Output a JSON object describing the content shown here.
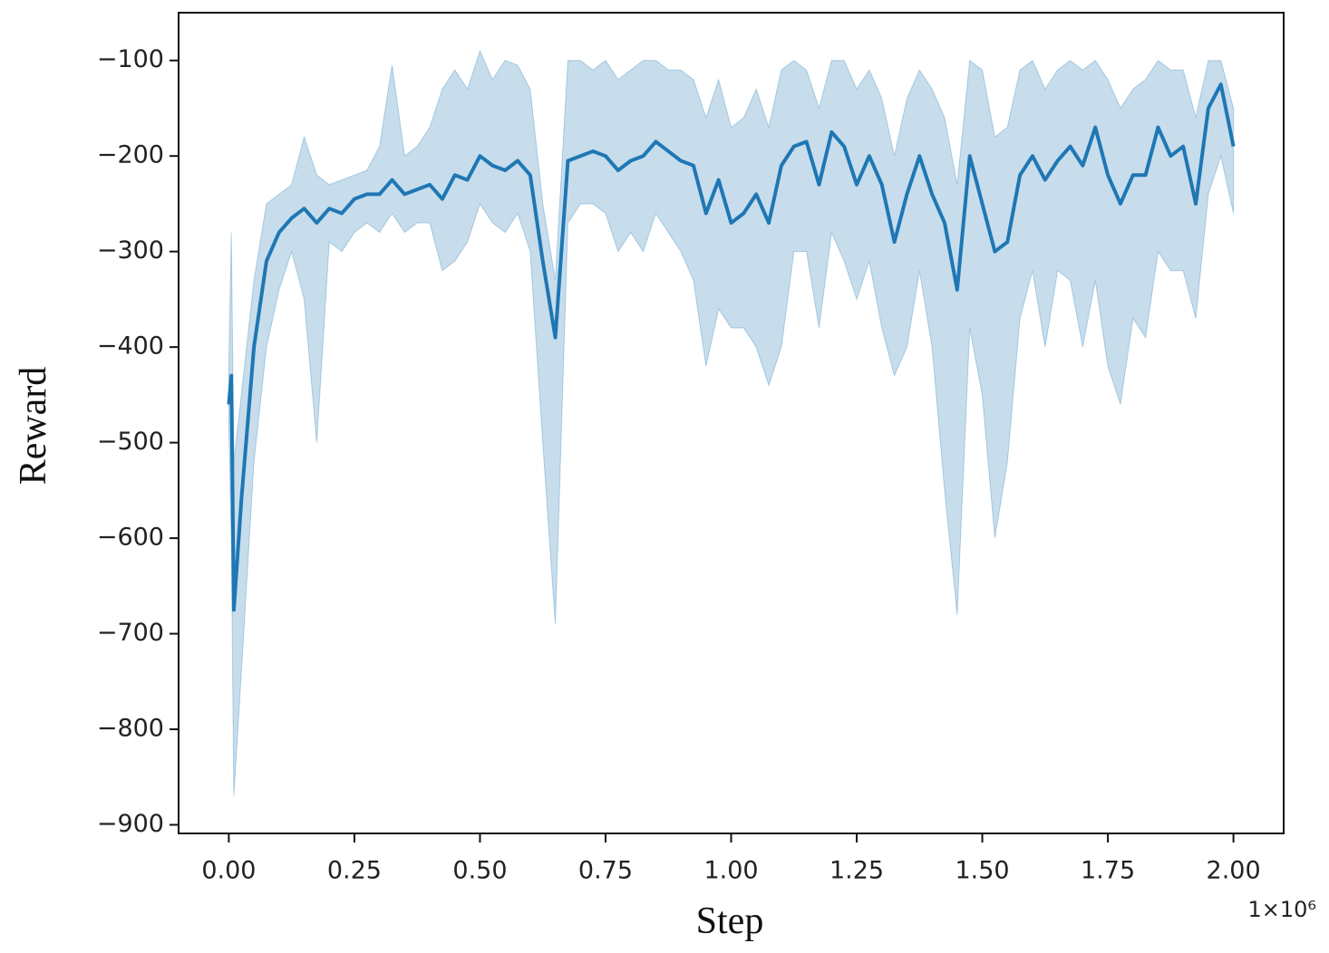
{
  "chart_data": {
    "type": "line",
    "xlabel": "Step",
    "ylabel": "Reward",
    "x_offset_label": "1×10⁶",
    "xlim": [
      -0.1,
      2.1
    ],
    "ylim": [
      -909,
      -50
    ],
    "xticks": [
      {
        "value": 0,
        "label": "0.00"
      },
      {
        "value": 0.25,
        "label": "0.25"
      },
      {
        "value": 0.5,
        "label": "0.50"
      },
      {
        "value": 0.75,
        "label": "0.75"
      },
      {
        "value": 1,
        "label": "1.00"
      },
      {
        "value": 1.25,
        "label": "1.25"
      },
      {
        "value": 1.5,
        "label": "1.50"
      },
      {
        "value": 1.75,
        "label": "1.75"
      },
      {
        "value": 2,
        "label": "2.00"
      }
    ],
    "yticks": [
      {
        "value": -900,
        "label": "−900"
      },
      {
        "value": -800,
        "label": "−800"
      },
      {
        "value": -700,
        "label": "−700"
      },
      {
        "value": -600,
        "label": "−600"
      },
      {
        "value": -500,
        "label": "−500"
      },
      {
        "value": -400,
        "label": "−400"
      },
      {
        "value": -300,
        "label": "−300"
      },
      {
        "value": -200,
        "label": "−200"
      },
      {
        "value": -100,
        "label": "−100"
      }
    ],
    "x": [
      0,
      0.005,
      0.01,
      0.025,
      0.05,
      0.075,
      0.1,
      0.125,
      0.15,
      0.175,
      0.2,
      0.225,
      0.25,
      0.275,
      0.3,
      0.325,
      0.35,
      0.375,
      0.4,
      0.425,
      0.45,
      0.475,
      0.5,
      0.525,
      0.55,
      0.575,
      0.6,
      0.625,
      0.65,
      0.675,
      0.7,
      0.725,
      0.75,
      0.775,
      0.8,
      0.825,
      0.85,
      0.875,
      0.9,
      0.925,
      0.95,
      0.975,
      1.0,
      1.025,
      1.05,
      1.075,
      1.1,
      1.125,
      1.15,
      1.175,
      1.2,
      1.225,
      1.25,
      1.275,
      1.3,
      1.325,
      1.35,
      1.375,
      1.4,
      1.425,
      1.45,
      1.475,
      1.5,
      1.525,
      1.55,
      1.575,
      1.6,
      1.625,
      1.65,
      1.675,
      1.7,
      1.725,
      1.75,
      1.775,
      1.8,
      1.825,
      1.85,
      1.875,
      1.9,
      1.925,
      1.95,
      1.975,
      2.0
    ],
    "series": [
      {
        "color": "#1f77b4",
        "values": [
          -460,
          -430,
          -675,
          -560,
          -400,
          -310,
          -280,
          -265,
          -255,
          -270,
          -255,
          -260,
          -245,
          -240,
          -240,
          -225,
          -240,
          -235,
          -230,
          -245,
          -220,
          -225,
          -200,
          -210,
          -215,
          -205,
          -220,
          -310,
          -390,
          -205,
          -200,
          -195,
          -200,
          -215,
          -205,
          -200,
          -185,
          -195,
          -205,
          -210,
          -260,
          -225,
          -270,
          -260,
          -240,
          -270,
          -210,
          -190,
          -185,
          -230,
          -175,
          -190,
          -230,
          -200,
          -230,
          -290,
          -240,
          -200,
          -240,
          -270,
          -340,
          -200,
          -250,
          -300,
          -290,
          -220,
          -200,
          -225,
          -205,
          -190,
          -210,
          -170,
          -220,
          -250,
          -220,
          -220,
          -170,
          -200,
          -190,
          -250,
          -150,
          -125,
          -190
        ]
      }
    ],
    "band": {
      "color": "#1f77b4",
      "upper": [
        -420,
        -280,
        -520,
        -450,
        -330,
        -250,
        -240,
        -230,
        -180,
        -220,
        -230,
        -225,
        -220,
        -215,
        -190,
        -105,
        -200,
        -190,
        -170,
        -130,
        -110,
        -130,
        -90,
        -120,
        -100,
        -105,
        -130,
        -250,
        -330,
        -100,
        -100,
        -110,
        -100,
        -120,
        -110,
        -100,
        -100,
        -110,
        -110,
        -120,
        -160,
        -120,
        -170,
        -160,
        -130,
        -170,
        -110,
        -100,
        -110,
        -150,
        -100,
        -100,
        -130,
        -110,
        -140,
        -200,
        -140,
        -110,
        -130,
        -160,
        -230,
        -100,
        -110,
        -180,
        -170,
        -110,
        -100,
        -130,
        -110,
        -100,
        -110,
        -100,
        -120,
        -150,
        -130,
        -120,
        -100,
        -110,
        -110,
        -160,
        -100,
        -100,
        -150
      ],
      "lower": [
        -480,
        -600,
        -870,
        -740,
        -520,
        -400,
        -340,
        -300,
        -350,
        -500,
        -290,
        -300,
        -280,
        -270,
        -280,
        -260,
        -280,
        -270,
        -270,
        -320,
        -310,
        -290,
        -250,
        -270,
        -280,
        -260,
        -300,
        -500,
        -690,
        -270,
        -250,
        -250,
        -260,
        -300,
        -280,
        -300,
        -260,
        -280,
        -300,
        -330,
        -420,
        -360,
        -380,
        -380,
        -400,
        -440,
        -400,
        -300,
        -300,
        -380,
        -280,
        -310,
        -350,
        -310,
        -380,
        -430,
        -400,
        -320,
        -400,
        -550,
        -680,
        -380,
        -450,
        -600,
        -520,
        -370,
        -320,
        -400,
        -320,
        -330,
        -400,
        -330,
        -420,
        -460,
        -370,
        -390,
        -300,
        -320,
        -320,
        -370,
        -240,
        -200,
        -260
      ]
    }
  }
}
